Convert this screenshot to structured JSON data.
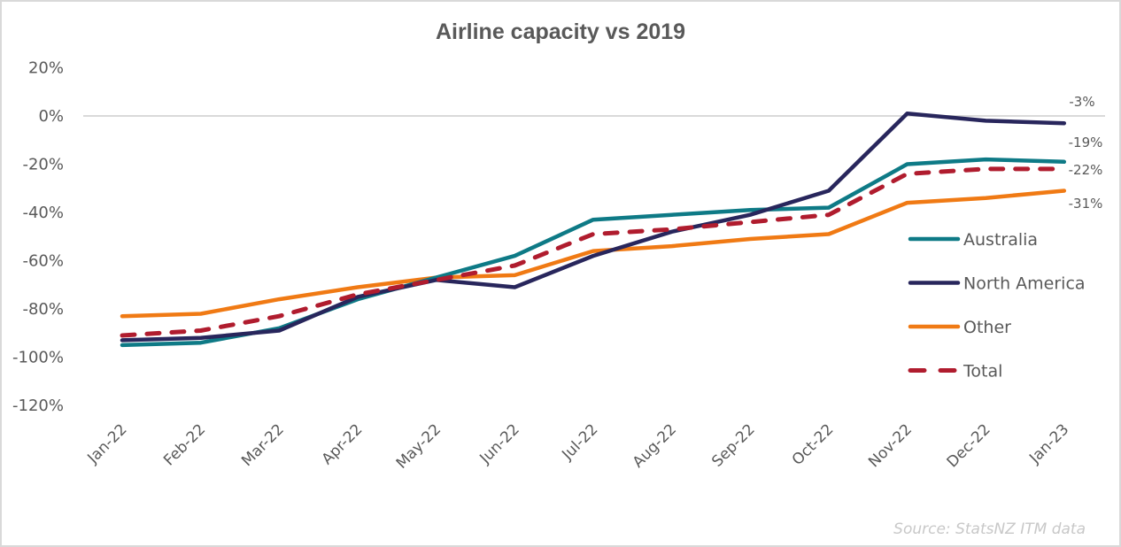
{
  "chart_data": {
    "type": "line",
    "title": "Airline capacity vs 2019",
    "xlabel": "",
    "ylabel": "",
    "ylim": [
      -120,
      20
    ],
    "yticks": [
      "20%",
      "0%",
      "-20%",
      "-40%",
      "-60%",
      "-80%",
      "-100%",
      "-120%"
    ],
    "ytick_values": [
      20,
      0,
      -20,
      -40,
      -60,
      -80,
      -100,
      -120
    ],
    "grid": "zero-line only",
    "categories": [
      "Jan-22",
      "Feb-22",
      "Mar-22",
      "Apr-22",
      "May-22",
      "Jun-22",
      "Jul-22",
      "Aug-22",
      "Sep-22",
      "Oct-22",
      "Nov-22",
      "Dec-22",
      "Jan-23"
    ],
    "series": [
      {
        "name": "Australia",
        "color": "#0e7a86",
        "dashed": false,
        "values": [
          -95,
          -94,
          -88,
          -76,
          -67,
          -58,
          -43,
          -41,
          -39,
          -38,
          -20,
          -18,
          -19
        ]
      },
      {
        "name": "North America",
        "color": "#28265c",
        "dashed": false,
        "values": [
          -93,
          -92,
          -89,
          -75,
          -68,
          -71,
          -58,
          -48,
          -41,
          -31,
          1,
          -2,
          -3
        ]
      },
      {
        "name": "Other",
        "color": "#f07a14",
        "dashed": false,
        "values": [
          -83,
          -82,
          -76,
          -71,
          -67,
          -66,
          -56,
          -54,
          -51,
          -49,
          -36,
          -34,
          -31
        ]
      },
      {
        "name": "Total",
        "color": "#b01c2e",
        "dashed": true,
        "values": [
          -91,
          -89,
          -83,
          -74,
          -68,
          -62,
          -49,
          -47,
          -44,
          -41,
          -24,
          -22,
          -22
        ]
      }
    ],
    "end_labels": [
      {
        "series": "North America",
        "text": "-3%"
      },
      {
        "series": "Australia",
        "text": "-19%"
      },
      {
        "series": "Total",
        "text": "-22%"
      },
      {
        "series": "Other",
        "text": "-31%"
      }
    ],
    "legend": {
      "position": "right",
      "entries": [
        "Australia",
        "North America",
        "Other",
        "Total"
      ]
    },
    "source": "Source: StatsNZ ITM data"
  }
}
